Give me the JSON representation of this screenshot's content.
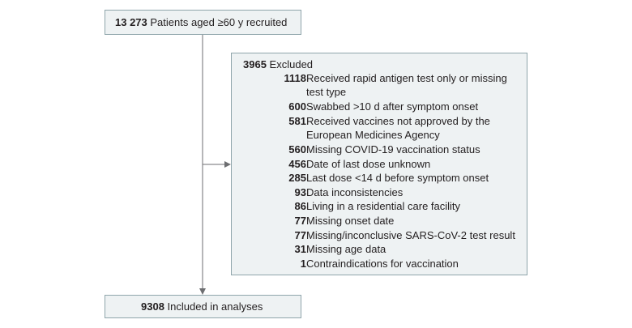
{
  "recruited": {
    "count": "13 273",
    "label": "Patients aged ≥60 y recruited"
  },
  "excluded": {
    "count": "3965",
    "label": "Excluded"
  },
  "reasons": [
    {
      "count": "1118",
      "text": "Received rapid antigen test only or missing test type"
    },
    {
      "count": "600",
      "text": "Swabbed >10 d after symptom onset"
    },
    {
      "count": "581",
      "text": "Received vaccines not approved by the European Medicines Agency"
    },
    {
      "count": "560",
      "text": "Missing COVID-19 vaccination status"
    },
    {
      "count": "456",
      "text": "Date of last dose unknown"
    },
    {
      "count": "285",
      "text": "Last dose <14 d before symptom onset"
    },
    {
      "count": "93",
      "text": "Data inconsistencies"
    },
    {
      "count": "86",
      "text": "Living in a residential care facility"
    },
    {
      "count": "77",
      "text": "Missing onset date"
    },
    {
      "count": "77",
      "text": "Missing/inconclusive SARS-CoV-2 test result"
    },
    {
      "count": "31",
      "text": "Missing age data"
    },
    {
      "count": "1",
      "text": "Contraindications for vaccination"
    }
  ],
  "included": {
    "count": "9308",
    "label": "Included in analyses"
  },
  "colors": {
    "box_fill": "#eef2f3",
    "box_border": "#8fa5ab",
    "arrow": "#6d6e71"
  }
}
